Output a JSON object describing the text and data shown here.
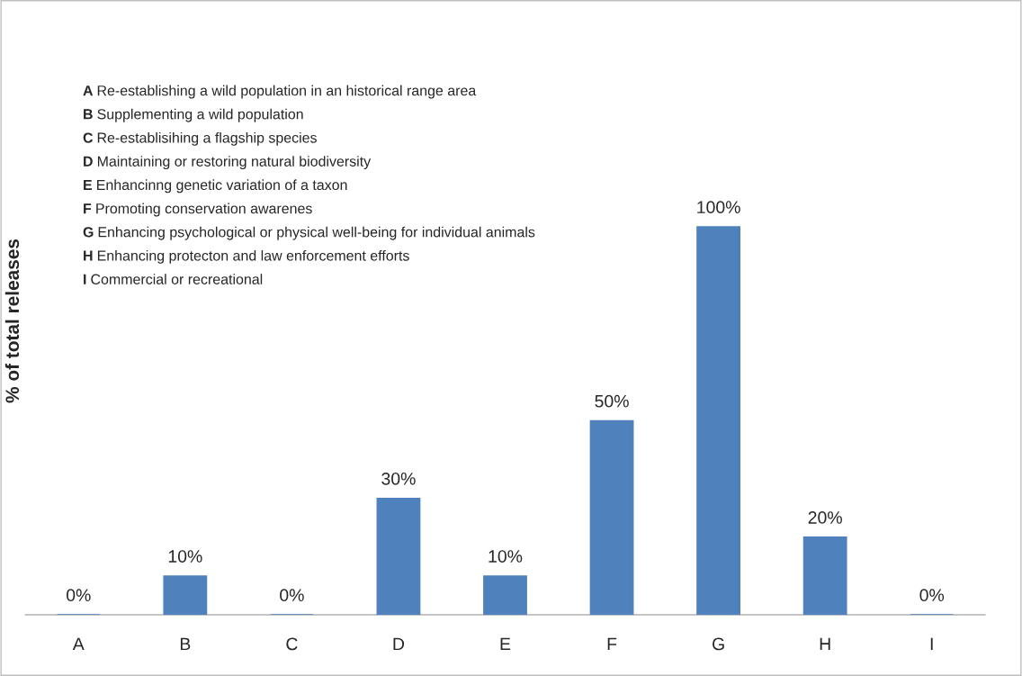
{
  "chart_data": {
    "type": "bar",
    "ylabel": "% of total releases",
    "categories": [
      "A",
      "B",
      "C",
      "D",
      "E",
      "F",
      "G",
      "H",
      "I"
    ],
    "values": [
      0,
      10,
      0,
      30,
      10,
      50,
      100,
      20,
      0
    ],
    "value_labels": [
      "0%",
      "10%",
      "0%",
      "30%",
      "10%",
      "50%",
      "100%",
      "20%",
      "0%"
    ],
    "color": "#4f81bd",
    "grid": false,
    "legend": false,
    "annotations": [
      "A Re-establishing a wild population in an historical range area",
      "B Supplementing a wild population",
      "C Re-establisihing a flagship species",
      "D Maintaining or restoring natural biodiversity",
      "E Enhancinng genetic variation of a taxon",
      "F Promoting conservation awarenes",
      "G Enhancing psychological or physical well-being for individual animals",
      "H Enhancing protecton and law enforcement efforts",
      "I Commercial or recreational"
    ]
  }
}
